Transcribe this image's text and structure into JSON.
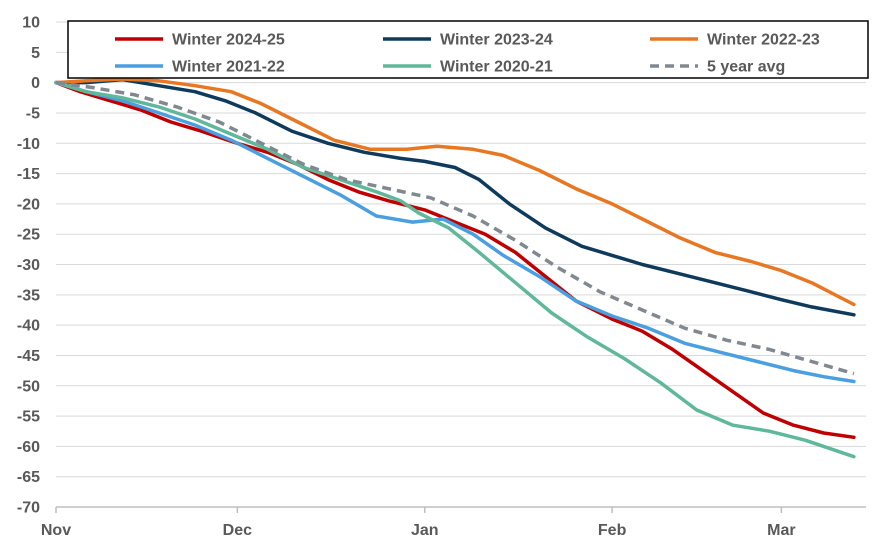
{
  "chart_data": {
    "type": "line",
    "title": "",
    "xlabel": "",
    "ylabel": "",
    "ylim": [
      -70,
      10
    ],
    "yticks": [
      10,
      5,
      0,
      -5,
      -10,
      -15,
      -20,
      -25,
      -30,
      -35,
      -40,
      -45,
      -50,
      -55,
      -60,
      -65,
      -70
    ],
    "xlim": [
      "2024-11-01",
      "2025-03-15"
    ],
    "xticks": [
      {
        "label": "Nov",
        "date": "2024-11-01"
      },
      {
        "label": "Dec",
        "date": "2024-12-01"
      },
      {
        "label": "Jan",
        "date": "2025-01-01"
      },
      {
        "label": "Feb",
        "date": "2025-02-01"
      },
      {
        "label": "Mar",
        "date": "2025-03-01"
      }
    ],
    "grid": "horizontal",
    "legend_position": "top",
    "series": [
      {
        "name": "Winter 2024-25",
        "color": "#c00000",
        "dash": false,
        "x": [
          "2024-11-01",
          "2024-11-05",
          "2024-11-10",
          "2024-11-15",
          "2024-11-20",
          "2024-11-25",
          "2024-12-01",
          "2024-12-06",
          "2024-12-11",
          "2024-12-16",
          "2024-12-21",
          "2024-12-26",
          "2025-01-01",
          "2025-01-06",
          "2025-01-11",
          "2025-01-16",
          "2025-01-21",
          "2025-01-26",
          "2025-02-01",
          "2025-02-06",
          "2025-02-11",
          "2025-02-16",
          "2025-02-21",
          "2025-02-26",
          "2025-03-03",
          "2025-03-08",
          "2025-03-13"
        ],
        "y": [
          0,
          -1.5,
          -3,
          -4.5,
          -6.5,
          -8,
          -10,
          -11.5,
          -13.5,
          -16,
          -18,
          -19.5,
          -21,
          -23,
          -25,
          -28,
          -32,
          -36,
          -39,
          -41,
          -44,
          -47.5,
          -51,
          -54.5,
          -56.5,
          -57.8,
          -58.5
        ]
      },
      {
        "name": "Winter 2023-24",
        "color": "#0e3a5c",
        "dash": false,
        "x": [
          "2024-11-01",
          "2024-11-06",
          "2024-11-12",
          "2024-11-18",
          "2024-11-24",
          "2024-11-29",
          "2024-12-04",
          "2024-12-10",
          "2024-12-16",
          "2024-12-22",
          "2024-12-28",
          "2025-01-01",
          "2025-01-06",
          "2025-01-10",
          "2025-01-15",
          "2025-01-21",
          "2025-01-27",
          "2025-02-01",
          "2025-02-06",
          "2025-02-12",
          "2025-02-18",
          "2025-02-24",
          "2025-03-01",
          "2025-03-06",
          "2025-03-13"
        ],
        "y": [
          0,
          0,
          0.5,
          -0.5,
          -1.5,
          -3,
          -5,
          -8,
          -10,
          -11.5,
          -12.5,
          -13,
          -14,
          -16,
          -20,
          -24,
          -27,
          -28.5,
          -30,
          -31.5,
          -33,
          -34.5,
          -35.8,
          -37,
          -38.3
        ]
      },
      {
        "name": "Winter 2022-23",
        "color": "#e87722",
        "dash": false,
        "x": [
          "2024-11-01",
          "2024-11-06",
          "2024-11-12",
          "2024-11-18",
          "2024-11-24",
          "2024-11-30",
          "2024-12-05",
          "2024-12-11",
          "2024-12-17",
          "2024-12-23",
          "2024-12-29",
          "2025-01-03",
          "2025-01-09",
          "2025-01-14",
          "2025-01-20",
          "2025-01-26",
          "2025-02-01",
          "2025-02-06",
          "2025-02-12",
          "2025-02-18",
          "2025-02-24",
          "2025-03-01",
          "2025-03-06",
          "2025-03-13"
        ],
        "y": [
          0,
          0.3,
          0.6,
          0.3,
          -0.5,
          -1.5,
          -3.5,
          -6.5,
          -9.5,
          -11,
          -11,
          -10.5,
          -11,
          -12,
          -14.5,
          -17.5,
          -20,
          -22.5,
          -25.5,
          -28,
          -29.5,
          -31,
          -33,
          -36.6
        ]
      },
      {
        "name": "Winter 2021-22",
        "color": "#4a9fe0",
        "dash": false,
        "x": [
          "2024-11-01",
          "2024-11-06",
          "2024-11-12",
          "2024-11-18",
          "2024-11-24",
          "2024-11-30",
          "2024-12-06",
          "2024-12-12",
          "2024-12-18",
          "2024-12-24",
          "2024-12-30",
          "2025-01-04",
          "2025-01-09",
          "2025-01-14",
          "2025-01-20",
          "2025-01-26",
          "2025-02-01",
          "2025-02-07",
          "2025-02-13",
          "2025-02-19",
          "2025-02-25",
          "2025-03-03",
          "2025-03-08",
          "2025-03-13"
        ],
        "y": [
          0,
          -1.5,
          -3,
          -5,
          -7,
          -9.5,
          -12.5,
          -15.5,
          -18.5,
          -22,
          -23,
          -22.5,
          -25,
          -28.5,
          -32,
          -36,
          -38.5,
          -40.5,
          -43,
          -44.5,
          -46,
          -47.5,
          -48.5,
          -49.3
        ]
      },
      {
        "name": "Winter 2020-21",
        "color": "#5fb89a",
        "dash": false,
        "x": [
          "2024-11-01",
          "2024-11-06",
          "2024-11-12",
          "2024-11-18",
          "2024-11-24",
          "2024-11-30",
          "2024-12-06",
          "2024-12-12",
          "2024-12-18",
          "2024-12-24",
          "2024-12-28",
          "2024-12-31",
          "2025-01-05",
          "2025-01-10",
          "2025-01-16",
          "2025-01-22",
          "2025-01-28",
          "2025-02-03",
          "2025-02-09",
          "2025-02-15",
          "2025-02-21",
          "2025-02-27",
          "2025-03-05",
          "2025-03-13"
        ],
        "y": [
          0,
          -1.5,
          -2.5,
          -4,
          -6,
          -8.5,
          -11,
          -14,
          -16,
          -18,
          -19.5,
          -21.5,
          -24,
          -28,
          -33,
          -38,
          -42,
          -45.5,
          -49.5,
          -54,
          -56.5,
          -57.5,
          -59,
          -61.7
        ]
      },
      {
        "name": "5 year avg",
        "color": "#808890",
        "dash": true,
        "x": [
          "2024-11-01",
          "2024-11-07",
          "2024-11-14",
          "2024-11-21",
          "2024-11-28",
          "2024-12-05",
          "2024-12-12",
          "2024-12-19",
          "2024-12-26",
          "2025-01-02",
          "2025-01-09",
          "2025-01-16",
          "2025-01-23",
          "2025-01-30",
          "2025-02-06",
          "2025-02-13",
          "2025-02-20",
          "2025-02-27",
          "2025-03-06",
          "2025-03-13"
        ],
        "y": [
          0,
          -0.8,
          -2,
          -4,
          -6.5,
          -10,
          -13.5,
          -16,
          -17.5,
          -19,
          -22,
          -26,
          -30.5,
          -34.5,
          -37.5,
          -40.5,
          -42.5,
          -44,
          -46,
          -48
        ]
      }
    ]
  }
}
